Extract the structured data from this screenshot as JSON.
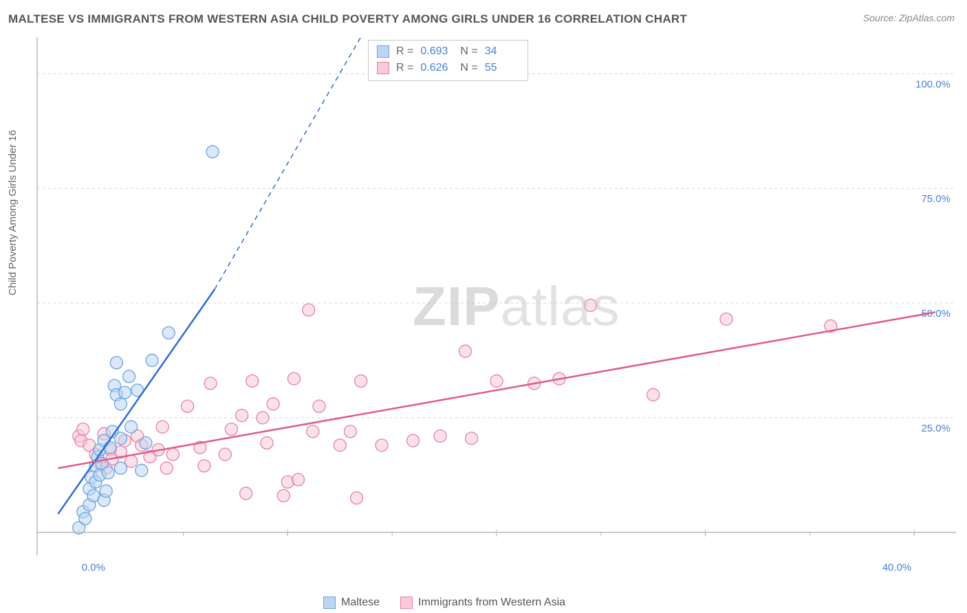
{
  "title": "MALTESE VS IMMIGRANTS FROM WESTERN ASIA CHILD POVERTY AMONG GIRLS UNDER 16 CORRELATION CHART",
  "source_label": "Source: ZipAtlas.com",
  "ylabel": "Child Poverty Among Girls Under 16",
  "watermark": {
    "part1": "ZIP",
    "part2": "atlas"
  },
  "colors": {
    "series_a_fill": "#bcd6f2",
    "series_a_stroke": "#6aa3e0",
    "series_a_line": "#2e6bd1",
    "series_b_fill": "#f7cbd8",
    "series_b_stroke": "#e87fa5",
    "series_b_line": "#e05a89",
    "grid": "#d8d8d8",
    "axis": "#b8b8b8",
    "tick_text": "#4a7fd4",
    "title_text": "#555555",
    "background": "#ffffff"
  },
  "plot": {
    "inner_x": 54,
    "inner_y": 54,
    "inner_w": 1336,
    "inner_h": 754,
    "xlim": [
      -2,
      42
    ],
    "ylim": [
      -5,
      108
    ],
    "xticks": [
      0,
      10,
      20,
      30,
      40
    ],
    "xtick_labels": [
      "0.0%",
      "",
      "",
      "",
      "40.0%"
    ],
    "yticks": [
      25,
      50,
      75,
      100
    ],
    "ytick_labels": [
      "25.0%",
      "50.0%",
      "75.0%",
      "100.0%"
    ],
    "marker_radius": 9,
    "marker_opacity": 0.55,
    "line_width": 2.5,
    "grid_dash": "4,4"
  },
  "legend_top": {
    "rows": [
      {
        "swatch_fill": "#bcd6f2",
        "swatch_stroke": "#6aa3e0",
        "r_label": "R =",
        "r_val": "0.693",
        "n_label": "N =",
        "n_val": "34"
      },
      {
        "swatch_fill": "#f7cbd8",
        "swatch_stroke": "#e87fa5",
        "r_label": "R =",
        "r_val": "0.626",
        "n_label": "N =",
        "n_val": "55"
      }
    ]
  },
  "legend_bottom": {
    "items": [
      {
        "swatch_fill": "#bcd6f2",
        "swatch_stroke": "#6aa3e0",
        "label": "Maltese"
      },
      {
        "swatch_fill": "#f7cbd8",
        "swatch_stroke": "#e87fa5",
        "label": "Immigrants from Western Asia"
      }
    ]
  },
  "series_a": {
    "name": "Maltese",
    "trend": {
      "x1": -1,
      "y1": 4,
      "x2": 6.5,
      "y2": 53,
      "dash_x2": 13.5,
      "dash_y2": 108
    },
    "points": [
      [
        0.0,
        1.0
      ],
      [
        0.2,
        4.5
      ],
      [
        0.3,
        3.0
      ],
      [
        0.5,
        6.0
      ],
      [
        0.5,
        9.5
      ],
      [
        0.6,
        12.0
      ],
      [
        0.7,
        8.0
      ],
      [
        0.8,
        14.5
      ],
      [
        0.8,
        11.0
      ],
      [
        0.9,
        16.5
      ],
      [
        1.0,
        12.5
      ],
      [
        1.0,
        18.0
      ],
      [
        1.1,
        15.0
      ],
      [
        1.2,
        20.0
      ],
      [
        1.2,
        7.0
      ],
      [
        1.3,
        9.0
      ],
      [
        1.4,
        13.0
      ],
      [
        1.5,
        18.5
      ],
      [
        1.6,
        22.0
      ],
      [
        1.7,
        32.0
      ],
      [
        1.8,
        30.0
      ],
      [
        1.8,
        37.0
      ],
      [
        2.0,
        28.0
      ],
      [
        2.0,
        14.0
      ],
      [
        2.0,
        20.5
      ],
      [
        2.2,
        30.5
      ],
      [
        2.4,
        34.0
      ],
      [
        2.5,
        23.0
      ],
      [
        2.8,
        31.0
      ],
      [
        3.0,
        13.5
      ],
      [
        3.2,
        19.5
      ],
      [
        3.5,
        37.5
      ],
      [
        4.3,
        43.5
      ],
      [
        6.4,
        83.0
      ]
    ]
  },
  "series_b": {
    "name": "Immigrants from Western Asia",
    "trend": {
      "x1": -1,
      "y1": 14,
      "x2": 41,
      "y2": 48
    },
    "points": [
      [
        0.0,
        21.0
      ],
      [
        0.1,
        20.0
      ],
      [
        0.2,
        22.5
      ],
      [
        0.5,
        19.0
      ],
      [
        0.8,
        17.0
      ],
      [
        1.0,
        15.0
      ],
      [
        1.2,
        21.5
      ],
      [
        1.3,
        14.0
      ],
      [
        1.5,
        18.0
      ],
      [
        1.6,
        16.0
      ],
      [
        2.0,
        17.5
      ],
      [
        2.2,
        20.0
      ],
      [
        2.5,
        15.5
      ],
      [
        2.8,
        21.0
      ],
      [
        3.0,
        19.0
      ],
      [
        3.4,
        16.5
      ],
      [
        3.8,
        18.0
      ],
      [
        4.0,
        23.0
      ],
      [
        4.2,
        14.0
      ],
      [
        4.5,
        17.0
      ],
      [
        5.2,
        27.5
      ],
      [
        5.8,
        18.5
      ],
      [
        6.0,
        14.5
      ],
      [
        6.3,
        32.5
      ],
      [
        7.0,
        17.0
      ],
      [
        7.3,
        22.5
      ],
      [
        7.8,
        25.5
      ],
      [
        8.0,
        8.5
      ],
      [
        8.3,
        33.0
      ],
      [
        8.8,
        25.0
      ],
      [
        9.0,
        19.5
      ],
      [
        9.3,
        28.0
      ],
      [
        9.8,
        8.0
      ],
      [
        10.0,
        11.0
      ],
      [
        10.3,
        33.5
      ],
      [
        10.5,
        11.5
      ],
      [
        11.0,
        48.5
      ],
      [
        11.2,
        22.0
      ],
      [
        11.5,
        27.5
      ],
      [
        12.5,
        19.0
      ],
      [
        13.0,
        22.0
      ],
      [
        13.3,
        7.5
      ],
      [
        13.5,
        33.0
      ],
      [
        14.5,
        19.0
      ],
      [
        16.0,
        20.0
      ],
      [
        17.3,
        21.0
      ],
      [
        18.5,
        39.5
      ],
      [
        18.8,
        20.5
      ],
      [
        20.0,
        33.0
      ],
      [
        21.8,
        32.5
      ],
      [
        23.0,
        33.5
      ],
      [
        24.5,
        49.5
      ],
      [
        27.5,
        30.0
      ],
      [
        31.0,
        46.5
      ],
      [
        36.0,
        45.0
      ]
    ]
  }
}
